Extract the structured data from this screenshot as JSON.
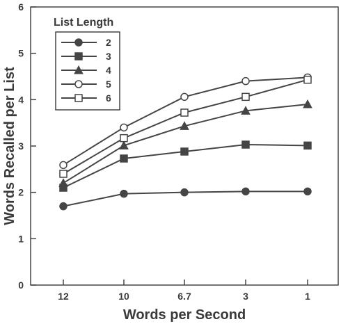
{
  "chart_data": {
    "type": "line",
    "xlabel": "Words per Second",
    "ylabel": "Words Recalled per List",
    "categories": [
      "12",
      "10",
      "6.7",
      "3",
      "1"
    ],
    "ylim": [
      0,
      6
    ],
    "yticks": [
      0,
      1,
      2,
      3,
      4,
      5,
      6
    ],
    "grid": false,
    "legend": {
      "title": "List Length",
      "position": "top-left"
    },
    "series": [
      {
        "name": "2",
        "marker": "filled-circle",
        "values": [
          1.7,
          1.97,
          2.0,
          2.02,
          2.02
        ]
      },
      {
        "name": "3",
        "marker": "filled-square",
        "values": [
          2.1,
          2.73,
          2.88,
          3.03,
          3.01
        ]
      },
      {
        "name": "4",
        "marker": "filled-triangle",
        "values": [
          2.2,
          3.01,
          3.43,
          3.76,
          3.9
        ]
      },
      {
        "name": "5",
        "marker": "open-circle",
        "values": [
          2.59,
          3.4,
          4.06,
          4.4,
          4.48
        ]
      },
      {
        "name": "6",
        "marker": "open-square",
        "values": [
          2.4,
          3.17,
          3.72,
          4.06,
          4.43
        ]
      }
    ]
  },
  "colors": {
    "line": "#454545",
    "text": "#3a3a3a"
  }
}
